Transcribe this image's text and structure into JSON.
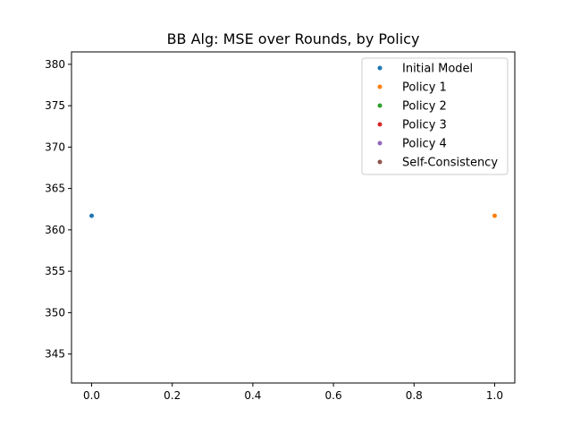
{
  "chart_data": {
    "type": "scatter",
    "title": "BB Alg: MSE over Rounds, by Policy",
    "xlabel": "",
    "ylabel": "",
    "xlim": [
      -0.05,
      1.05
    ],
    "ylim": [
      341.5,
      381.5
    ],
    "x_ticks": [
      0.0,
      0.2,
      0.4,
      0.6,
      0.8,
      1.0
    ],
    "x_tick_labels": [
      "0.0",
      "0.2",
      "0.4",
      "0.6",
      "0.8",
      "1.0"
    ],
    "y_ticks": [
      345,
      350,
      355,
      360,
      365,
      370,
      375,
      380
    ],
    "y_tick_labels": [
      "345",
      "350",
      "355",
      "360",
      "365",
      "370",
      "375",
      "380"
    ],
    "grid": false,
    "legend_position": "top-right",
    "series": [
      {
        "name": "Initial Model",
        "color": "#1f77b4",
        "points": [
          {
            "x": 0,
            "y": 361.7
          }
        ]
      },
      {
        "name": "Policy 1",
        "color": "#ff7f0e",
        "points": [
          {
            "x": 1,
            "y": 361.7
          }
        ]
      },
      {
        "name": "Policy 2",
        "color": "#2ca02c",
        "points": []
      },
      {
        "name": "Policy 3",
        "color": "#d62728",
        "points": []
      },
      {
        "name": "Policy 4",
        "color": "#9467bd",
        "points": []
      },
      {
        "name": "Self-Consistency",
        "color": "#8c564b",
        "points": []
      }
    ]
  }
}
